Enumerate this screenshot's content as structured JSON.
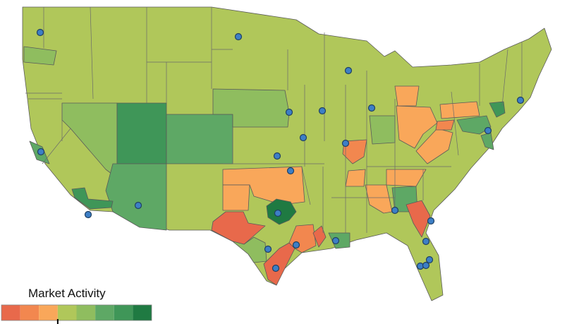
{
  "legend": {
    "title": "Market Activity",
    "colors": [
      "#e8694b",
      "#f2874f",
      "#f9a75a",
      "#b0c75a",
      "#8fbd5f",
      "#5ea865",
      "#3f9658",
      "#1f7a42"
    ],
    "marker_index": 3
  }
}
